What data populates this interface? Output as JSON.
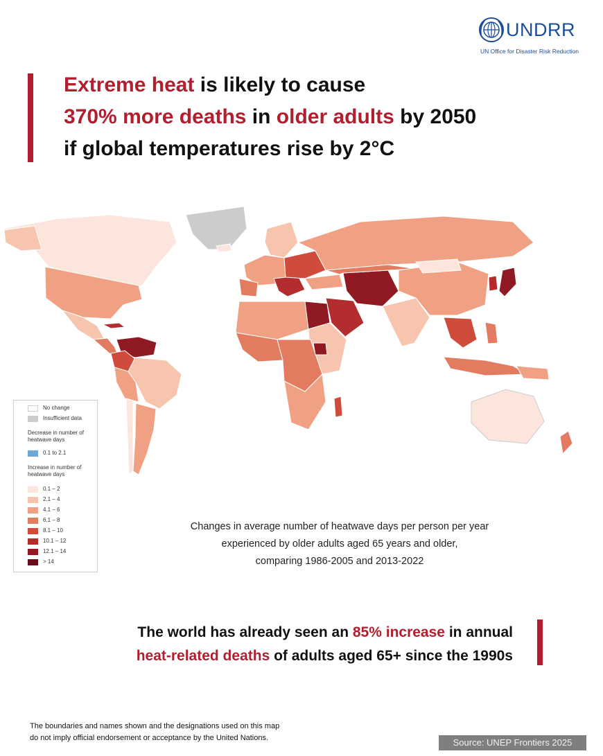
{
  "logo": {
    "name": "UNDRR",
    "subtitle": "UN Office for Disaster Risk Reduction",
    "brand_color": "#1c4e96",
    "icon": "un-emblem-icon"
  },
  "headline": {
    "line1": [
      "Extreme heat",
      " is likely to cause"
    ],
    "line2": [
      "370% more deaths",
      " in ",
      "older adults",
      " by 2050"
    ],
    "line3": "if global temperatures rise by 2°C",
    "accent_color": "#b11f2f"
  },
  "legend": {
    "items": [
      {
        "label": "No change",
        "color": "#ffffff"
      },
      {
        "label": "Insufficient data",
        "color": "#cccccc"
      }
    ],
    "decrease": {
      "heading": "Decrease in number of heatwave days",
      "items": [
        {
          "label": "0.1 to 2.1",
          "color": "#6fa8d6"
        }
      ]
    },
    "increase": {
      "heading": "Increase in number of heatwave days",
      "items": [
        {
          "label": "0.1 – 2",
          "color": "#fbe5dc"
        },
        {
          "label": "2.1 – 4",
          "color": "#f7c4ad"
        },
        {
          "label": "4.1 – 6",
          "color": "#f0a184"
        },
        {
          "label": "6.1 – 8",
          "color": "#e27b60"
        },
        {
          "label": "8.1 – 10",
          "color": "#cf4b3c"
        },
        {
          "label": "10.1 – 12",
          "color": "#b32d2f"
        },
        {
          "label": "12.1 – 14",
          "color": "#8f1a24"
        },
        {
          "label": "> 14",
          "color": "#6a0d18"
        }
      ]
    }
  },
  "caption": {
    "line1": "Changes in average number of heatwave days per person per year",
    "line2": "experienced by older adults aged 65 years and older,",
    "line3": "comparing 1986-2005 and 2013-2022"
  },
  "stat": {
    "line1": [
      "The world has already seen an ",
      "85% increase",
      " in annual"
    ],
    "line2": [
      "heat-related deaths",
      " of adults aged 65+ since the 1990s"
    ]
  },
  "disclaimer": {
    "line1": "The boundaries and names shown and the designations used on this map",
    "line2": "do not imply official endorsement or acceptance by the United Nations."
  },
  "source": "Source: UNEP Frontiers 2025"
}
